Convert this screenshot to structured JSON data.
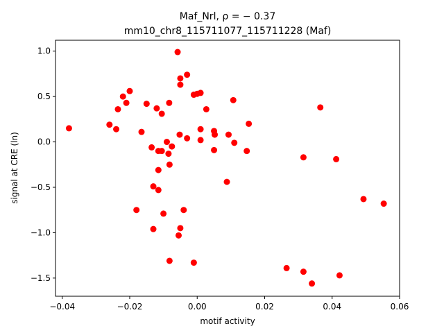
{
  "chart_data": {
    "type": "scatter",
    "title_line1": "Maf_Nrl, ρ = − 0.37",
    "title_line2": "mm10_chr8_115711077_115711228 (Maf)",
    "xlabel": "motif activity",
    "ylabel": "signal at CRE (ln)",
    "xlim": [
      -0.042,
      0.06
    ],
    "ylim": [
      -1.7,
      1.12
    ],
    "xticks": [
      -0.04,
      -0.02,
      0.0,
      0.02,
      0.04,
      0.06
    ],
    "xtick_labels": [
      "−0.04",
      "−0.02",
      "0.00",
      "0.02",
      "0.04",
      "0.06"
    ],
    "yticks": [
      -1.5,
      -1.0,
      -0.5,
      0.0,
      0.5,
      1.0
    ],
    "ytick_labels": [
      "−1.5",
      "−1.0",
      "−0.5",
      "0.0",
      "0.5",
      "1.0"
    ],
    "marker_color": "#ff0000",
    "grid": false,
    "points": [
      {
        "x": -0.038,
        "y": 0.15
      },
      {
        "x": -0.026,
        "y": 0.19
      },
      {
        "x": -0.024,
        "y": 0.14
      },
      {
        "x": -0.0235,
        "y": 0.36
      },
      {
        "x": -0.022,
        "y": 0.5
      },
      {
        "x": -0.021,
        "y": 0.43
      },
      {
        "x": -0.02,
        "y": 0.56
      },
      {
        "x": -0.018,
        "y": -0.75
      },
      {
        "x": -0.0165,
        "y": 0.11
      },
      {
        "x": -0.015,
        "y": 0.42
      },
      {
        "x": -0.0135,
        "y": -0.06
      },
      {
        "x": -0.013,
        "y": -0.49
      },
      {
        "x": -0.013,
        "y": -0.96
      },
      {
        "x": -0.012,
        "y": 0.37
      },
      {
        "x": -0.0115,
        "y": -0.1
      },
      {
        "x": -0.0115,
        "y": -0.53
      },
      {
        "x": -0.0115,
        "y": -0.31
      },
      {
        "x": -0.0105,
        "y": -0.1
      },
      {
        "x": -0.0105,
        "y": 0.31
      },
      {
        "x": -0.01,
        "y": -0.79
      },
      {
        "x": -0.009,
        "y": 0.0
      },
      {
        "x": -0.0085,
        "y": -0.13
      },
      {
        "x": -0.0083,
        "y": 0.43
      },
      {
        "x": -0.0082,
        "y": -0.25
      },
      {
        "x": -0.0082,
        "y": -1.31
      },
      {
        "x": -0.0075,
        "y": -0.05
      },
      {
        "x": -0.0058,
        "y": 0.99
      },
      {
        "x": -0.0055,
        "y": -1.03
      },
      {
        "x": -0.005,
        "y": 0.7
      },
      {
        "x": -0.005,
        "y": 0.63
      },
      {
        "x": -0.0052,
        "y": 0.08
      },
      {
        "x": -0.005,
        "y": -0.95
      },
      {
        "x": -0.004,
        "y": -0.75
      },
      {
        "x": -0.003,
        "y": 0.74
      },
      {
        "x": -0.003,
        "y": 0.04
      },
      {
        "x": -0.001,
        "y": 0.52
      },
      {
        "x": -0.001,
        "y": -1.33
      },
      {
        "x": 0.0,
        "y": 0.53
      },
      {
        "x": 0.001,
        "y": 0.54
      },
      {
        "x": 0.001,
        "y": 0.14
      },
      {
        "x": 0.001,
        "y": 0.02
      },
      {
        "x": 0.0027,
        "y": 0.36
      },
      {
        "x": 0.005,
        "y": 0.12
      },
      {
        "x": 0.0052,
        "y": 0.08
      },
      {
        "x": 0.005,
        "y": -0.09
      },
      {
        "x": 0.0088,
        "y": -0.44
      },
      {
        "x": 0.0093,
        "y": 0.08
      },
      {
        "x": 0.0107,
        "y": 0.46
      },
      {
        "x": 0.011,
        "y": -0.01
      },
      {
        "x": 0.0147,
        "y": -0.1
      },
      {
        "x": 0.0153,
        "y": 0.2
      },
      {
        "x": 0.0265,
        "y": -1.39
      },
      {
        "x": 0.0315,
        "y": -0.17
      },
      {
        "x": 0.0315,
        "y": -1.43
      },
      {
        "x": 0.034,
        "y": -1.56
      },
      {
        "x": 0.0365,
        "y": 0.38
      },
      {
        "x": 0.0412,
        "y": -0.19
      },
      {
        "x": 0.0422,
        "y": -1.47
      },
      {
        "x": 0.0493,
        "y": -0.63
      },
      {
        "x": 0.0553,
        "y": -0.68
      }
    ]
  }
}
